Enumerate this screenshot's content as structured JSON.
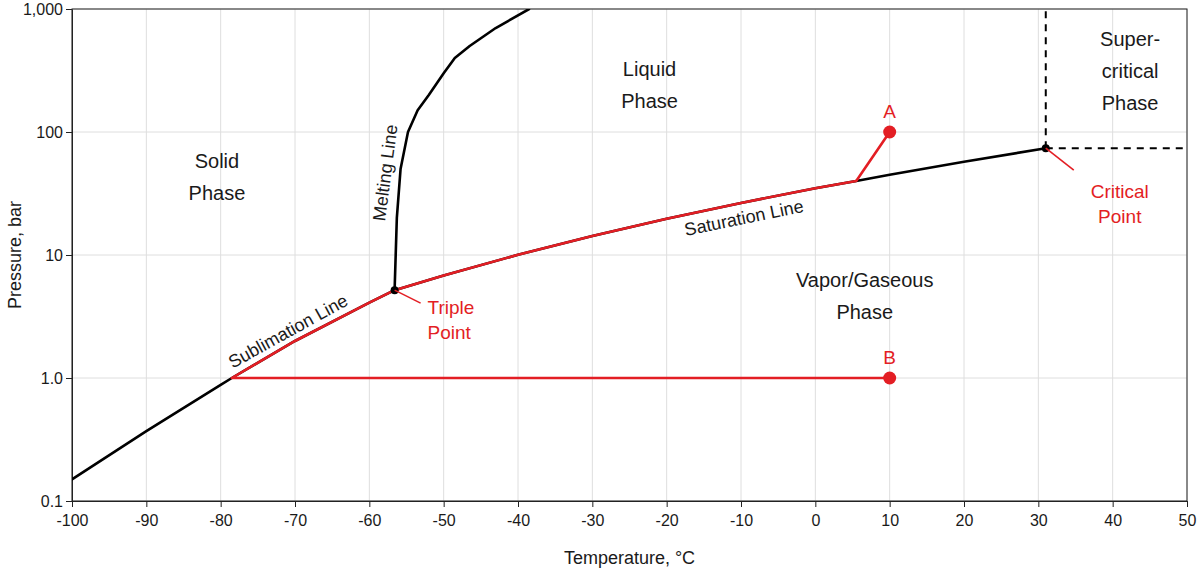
{
  "chart_data": {
    "type": "line",
    "x_label": "Temperature, °C",
    "y_label": "Pressure, bar",
    "xlim": [
      -100,
      50
    ],
    "xticks": [
      -100,
      -90,
      -80,
      -70,
      -60,
      -50,
      -40,
      -30,
      -20,
      -10,
      0,
      10,
      20,
      30,
      40,
      50
    ],
    "ylim": [
      0.1,
      1000
    ],
    "yticks": [
      0.1,
      {
        "value": 1,
        "label": "1.0"
      },
      10,
      100,
      {
        "value": 1000,
        "label": "1,000"
      }
    ],
    "log": "y",
    "grid": true,
    "series": [
      {
        "name": "Sublimation Line",
        "color": "#000000",
        "line_style": "solid",
        "x": [
          -100,
          -90,
          -80,
          -78.5,
          -70,
          -60,
          -56.6
        ],
        "values": [
          0.15,
          0.37,
          0.88,
          1.0,
          2.0,
          4.1,
          5.18
        ]
      },
      {
        "name": "Melting Line",
        "color": "#000000",
        "line_style": "solid",
        "x": [
          -56.6,
          -56.3,
          -55.8,
          -54.8,
          -53.5,
          -52,
          -50,
          -48.5,
          -46.5,
          -43,
          -38.5
        ],
        "values": [
          5.18,
          20,
          50,
          100,
          150,
          200,
          300,
          400,
          500,
          700,
          1000
        ]
      },
      {
        "name": "Saturation Line",
        "color": "#000000",
        "line_style": "solid",
        "x": [
          -56.6,
          -50,
          -40,
          -30,
          -20,
          -10,
          0,
          5.5,
          10,
          20,
          31
        ],
        "values": [
          5.18,
          6.8,
          10.05,
          14.3,
          19.7,
          26.5,
          34.9,
          40,
          45,
          57.3,
          73.8
        ]
      },
      {
        "color": "#e31e24",
        "line_style": "solid",
        "x": [
          10,
          5.5,
          0,
          -10,
          -20,
          -30,
          -40,
          -50,
          -56.6,
          -60,
          -70,
          -78.5,
          10
        ],
        "values": [
          100,
          40,
          34.9,
          26.5,
          19.7,
          14.3,
          10.05,
          6.8,
          5.18,
          4.1,
          2.0,
          1.0,
          1.0
        ]
      },
      {
        "color": "#000000",
        "line_style": "dashed",
        "x": [
          31,
          31
        ],
        "values": [
          73.8,
          1000
        ]
      },
      {
        "color": "#000000",
        "line_style": "dashed",
        "x": [
          31,
          50
        ],
        "values": [
          73.8,
          73.8
        ]
      }
    ],
    "points": [
      {
        "label": "A",
        "x": 10,
        "y": 100,
        "color": "#e31e24"
      },
      {
        "label": "B",
        "x": 10,
        "y": 1.0,
        "color": "#e31e24"
      },
      {
        "label": [
          "Triple",
          "Point"
        ],
        "x": -56.6,
        "y": 5.18,
        "color": "#000000"
      },
      {
        "label": [
          "Critical",
          "Point"
        ],
        "x": 31,
        "y": 73.8,
        "color": "#000000"
      }
    ],
    "regions": [
      {
        "label": [
          "Solid",
          "Phase"
        ]
      },
      {
        "label": [
          "Liquid",
          "Phase"
        ]
      },
      {
        "label": [
          "Vapor/Gaseous",
          "Phase"
        ]
      },
      {
        "label": [
          "Super-",
          "critical",
          "Phase"
        ]
      }
    ]
  }
}
